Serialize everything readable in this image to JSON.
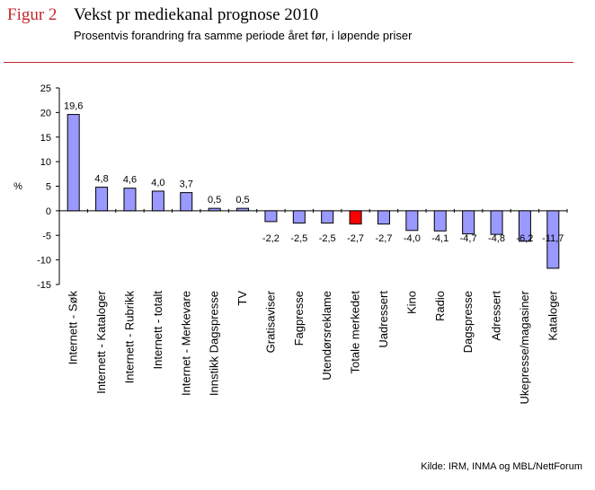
{
  "header": {
    "figure_label": "Figur 2",
    "title": "Vekst pr mediekanal prognose 2010",
    "subtitle": "Prosentvis forandring fra samme periode året før, i løpende priser"
  },
  "source": "Kilde: IRM, INMA og MBL/NettForum",
  "colors": {
    "bar": "#9999ff",
    "highlight": "#ff0000",
    "accent": "#c0272d",
    "axis": "#000000"
  },
  "chart_data": {
    "type": "bar",
    "title": "Vekst pr mediekanal prognose 2010",
    "ylabel": "%",
    "xlabel": "",
    "ylim": [
      -15,
      25
    ],
    "yticks": [
      25,
      20,
      15,
      10,
      5,
      0,
      -5,
      -10,
      -15
    ],
    "categories": [
      "Internett - Søk",
      "Internett - Kataloger",
      "Internett - Rubrikk",
      "Internett - totalt",
      "Internet - Merkevare",
      "Innstikk Dagspresse",
      "TV",
      "Gratisaviser",
      "Fagpresse",
      "Utendørsreklame",
      "Totale merkedet",
      "Uadressert",
      "Kino",
      "Radio",
      "Dagspresse",
      "Adressert",
      "Ukepresse/magasiner",
      "Kataloger"
    ],
    "values": [
      19.6,
      4.8,
      4.6,
      4.0,
      3.7,
      0.5,
      0.5,
      -2.2,
      -2.5,
      -2.5,
      -2.7,
      -2.7,
      -4.0,
      -4.1,
      -4.7,
      -4.8,
      -6.2,
      -11.7
    ],
    "value_labels": [
      "19,6",
      "4,8",
      "4,6",
      "4,0",
      "3,7",
      "0,5",
      "0,5",
      "-2,2",
      "-2,5",
      "-2,5",
      "-2,7",
      "-2,7",
      "-4,0",
      "-4,1",
      "-4,7",
      "-4,8",
      "-6,2",
      "-11,7"
    ],
    "highlight_index": 10,
    "grid": false,
    "legend": "none"
  }
}
